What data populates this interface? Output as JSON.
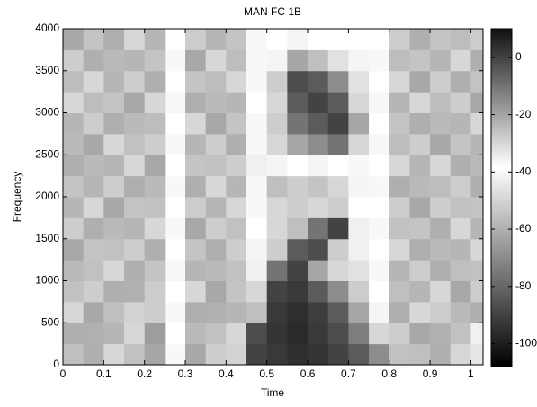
{
  "chart_data": {
    "type": "heatmap",
    "title": "MAN FC 1B",
    "x_label": "Time",
    "y_label": "Frequency",
    "x": [
      0.025,
      0.075,
      0.125,
      0.175,
      0.225,
      0.275,
      0.325,
      0.375,
      0.425,
      0.475,
      0.525,
      0.575,
      0.625,
      0.675,
      0.725,
      0.775,
      0.825,
      0.875,
      0.925,
      0.975,
      1.025
    ],
    "y": [
      125,
      375,
      625,
      875,
      1125,
      1375,
      1625,
      1875,
      2125,
      2375,
      2625,
      2875,
      3125,
      3375,
      3625,
      3875
    ],
    "cell_width": 0.05,
    "cell_height": 250,
    "values": [
      [
        -25,
        -60,
        -30,
        -55,
        -20,
        -40,
        -62,
        -28,
        -50,
        0,
        2,
        4,
        3,
        0,
        -5,
        -15,
        -55,
        -25,
        -60,
        -30,
        -45
      ],
      [
        -60,
        -22,
        -58,
        -30,
        -65,
        -38,
        -24,
        -55,
        -30,
        -2,
        3,
        5,
        2,
        -2,
        -12,
        -30,
        -28,
        -62,
        -22,
        -55,
        -35
      ],
      [
        -30,
        -62,
        -25,
        -50,
        -28,
        -40,
        -60,
        -22,
        -58,
        -25,
        2,
        4,
        1,
        -5,
        -20,
        -36,
        -60,
        -30,
        -52,
        -24,
        -60
      ],
      [
        -55,
        -28,
        -60,
        -22,
        -52,
        -38,
        -30,
        -62,
        -26,
        -30,
        0,
        2,
        -5,
        -15,
        -28,
        -38,
        -25,
        -58,
        -30,
        -62,
        -28
      ],
      [
        -24,
        -55,
        -30,
        -60,
        -26,
        -40,
        -58,
        -24,
        -55,
        -35,
        -10,
        0,
        -20,
        -30,
        -32,
        -40,
        -58,
        -28,
        -60,
        -25,
        -55
      ],
      [
        -62,
        -26,
        -55,
        -28,
        -60,
        -38,
        -26,
        -60,
        -28,
        -36,
        -28,
        -5,
        -2,
        -28,
        -35,
        -38,
        -30,
        -60,
        -24,
        -58,
        -30
      ],
      [
        -28,
        -60,
        -24,
        -58,
        -30,
        -40,
        -62,
        -28,
        -55,
        -38,
        -30,
        -25,
        -10,
        0,
        -35,
        -40,
        -55,
        -26,
        -60,
        -30,
        -58
      ],
      [
        -58,
        -30,
        -62,
        -26,
        -55,
        -38,
        -28,
        -58,
        -30,
        -40,
        -30,
        -28,
        -30,
        -28,
        -38,
        -38,
        -28,
        -62,
        -28,
        -55,
        -26
      ],
      [
        -26,
        -58,
        -28,
        -60,
        -24,
        -40,
        -60,
        -30,
        -58,
        -40,
        -25,
        -28,
        -26,
        -30,
        -36,
        -40,
        -60,
        -24,
        -56,
        -28,
        -60
      ],
      [
        -60,
        -24,
        -58,
        -30,
        -62,
        -38,
        -26,
        -55,
        -28,
        -42,
        -36,
        -38,
        -36,
        -38,
        -40,
        -38,
        -30,
        -58,
        -30,
        -60,
        -24
      ],
      [
        -24,
        -62,
        -30,
        -55,
        -28,
        -40,
        -58,
        -28,
        -60,
        -40,
        -30,
        -20,
        -15,
        -10,
        -30,
        -40,
        -56,
        -28,
        -62,
        -26,
        -58
      ],
      [
        -58,
        -28,
        -60,
        -24,
        -56,
        -38,
        -30,
        -62,
        -26,
        -40,
        -28,
        -10,
        -5,
        0,
        -20,
        -38,
        -26,
        -60,
        -24,
        -58,
        -30
      ],
      [
        -30,
        -56,
        -26,
        -62,
        -30,
        -40,
        -60,
        -24,
        -58,
        -38,
        -30,
        -5,
        0,
        -5,
        -30,
        -40,
        -58,
        -30,
        -56,
        -28,
        -62
      ],
      [
        -56,
        -30,
        -58,
        -28,
        -60,
        -38,
        -26,
        -56,
        -30,
        -40,
        -28,
        -2,
        -5,
        -15,
        -32,
        -38,
        -30,
        -62,
        -28,
        -60,
        -26
      ],
      [
        -28,
        -60,
        -24,
        -58,
        -26,
        -40,
        -62,
        -30,
        -56,
        -40,
        -36,
        -20,
        -25,
        -32,
        -36,
        -40,
        -56,
        -26,
        -58,
        -30,
        -60
      ],
      [
        -62,
        -26,
        -60,
        -30,
        -58,
        -38,
        -28,
        -58,
        -26,
        -40,
        -38,
        -36,
        -38,
        -38,
        -38,
        -38,
        -28,
        -60,
        -26,
        -56,
        -28
      ]
    ],
    "xlim": [
      0,
      1.03
    ],
    "ylim": [
      0,
      4000
    ],
    "xticks": [
      0,
      0.1,
      0.2,
      0.3,
      0.4,
      0.5,
      0.6,
      0.7,
      0.8,
      0.9,
      1
    ],
    "yticks": [
      0,
      500,
      1000,
      1500,
      2000,
      2500,
      3000,
      3500,
      4000
    ],
    "clim": [
      -108,
      10
    ],
    "cticks": [
      0,
      -20,
      -40,
      -60,
      -80,
      -100
    ],
    "colormap": [
      {
        "value": -108,
        "color": "#000000"
      },
      {
        "value": -38,
        "color": "#ffffff"
      },
      {
        "value": 10,
        "color": "#111111"
      }
    ]
  }
}
